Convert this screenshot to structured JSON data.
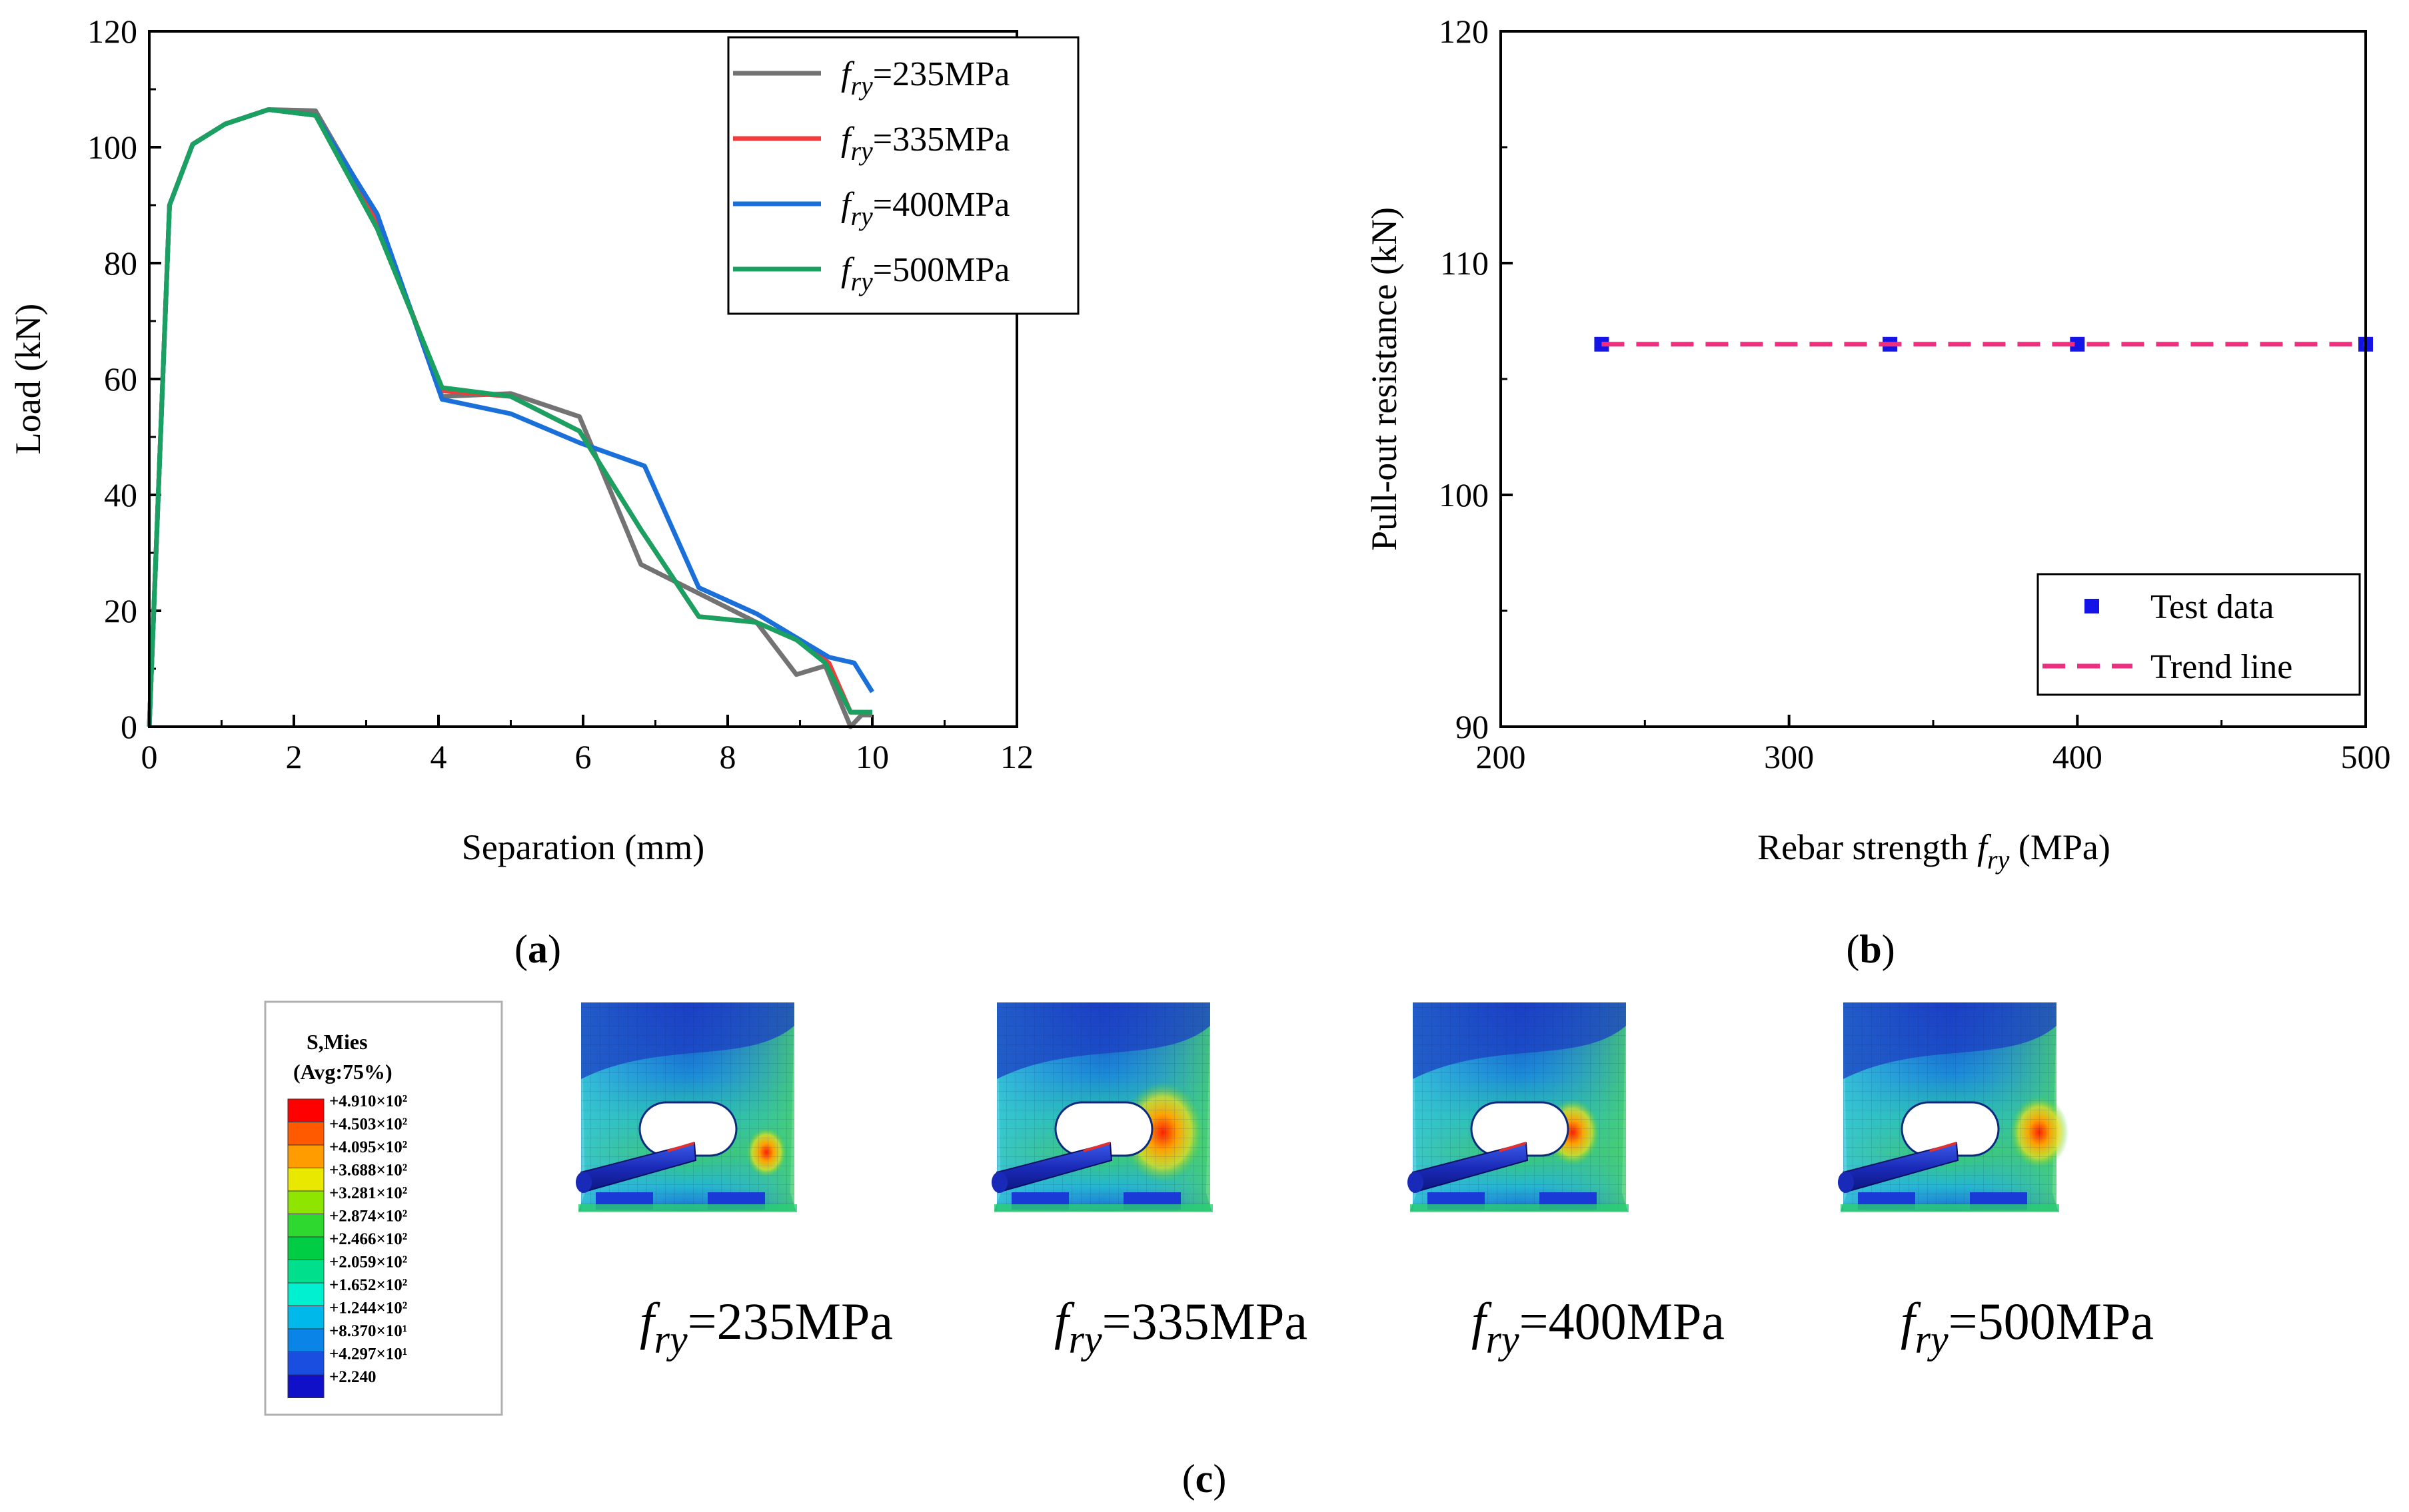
{
  "panel_labels": {
    "a": "a",
    "b": "b",
    "c": "c"
  },
  "chart_data": [
    {
      "id": "a",
      "type": "line",
      "xlabel": "Separation (mm)",
      "ylabel": "Load (kN)",
      "xlim": [
        0,
        12
      ],
      "ylim": [
        0,
        120
      ],
      "xticks": [
        0,
        2,
        4,
        6,
        8,
        10,
        12
      ],
      "yticks": [
        0,
        20,
        40,
        60,
        80,
        100,
        120
      ],
      "legend_position": "top-right",
      "series": [
        {
          "name": "=235MPa",
          "sym": "f",
          "sub": "ry",
          "color": "#737373",
          "x": [
            0,
            0.28,
            0.6,
            1.05,
            1.65,
            2.3,
            3.15,
            4.05,
            5.0,
            5.95,
            6.8,
            7.6,
            8.4,
            8.95,
            9.35,
            9.7,
            9.85,
            10.0
          ],
          "y": [
            0,
            90,
            100.5,
            104,
            106.5,
            106.3,
            88,
            57,
            57.5,
            53.5,
            28,
            23,
            18,
            9,
            10.5,
            0,
            2,
            2
          ]
        },
        {
          "name": "=335MPa",
          "sym": "f",
          "sub": "ry",
          "color": "#f23b3b",
          "x": [
            0,
            0.28,
            0.6,
            1.05,
            1.65,
            2.3,
            3.15,
            4.05,
            5.0,
            5.95,
            6.8,
            7.6,
            8.4,
            8.95,
            9.4,
            9.7,
            10.0
          ],
          "y": [
            0,
            90,
            100.5,
            104,
            106.5,
            105.5,
            87,
            58,
            57,
            51,
            34,
            19,
            18,
            15,
            11,
            2.5,
            2.5
          ]
        },
        {
          "name": "=400MPa",
          "sym": "f",
          "sub": "ry",
          "color": "#1a6fd8",
          "x": [
            0,
            0.28,
            0.6,
            1.05,
            1.65,
            2.3,
            3.15,
            4.05,
            5.0,
            5.95,
            6.85,
            7.6,
            8.4,
            9.0,
            9.4,
            9.75,
            10.0
          ],
          "y": [
            0,
            90,
            100.5,
            104,
            106.5,
            105.5,
            88.5,
            56.5,
            54,
            49,
            45,
            24,
            19.5,
            15,
            12,
            11,
            6
          ]
        },
        {
          "name": "=500MPa",
          "sym": "f",
          "sub": "ry",
          "color": "#1aa060",
          "x": [
            0,
            0.28,
            0.6,
            1.05,
            1.65,
            2.3,
            3.15,
            4.05,
            5.0,
            5.95,
            6.8,
            7.6,
            8.4,
            8.95,
            9.35,
            9.7,
            10.0
          ],
          "y": [
            0,
            90,
            100.5,
            104,
            106.5,
            105.5,
            86,
            58.5,
            57,
            51,
            34,
            19,
            18,
            15,
            11,
            2.5,
            2.5
          ]
        }
      ]
    },
    {
      "id": "b",
      "type": "scatter",
      "xlabel": "Rebar strength",
      "xlabel_sym": "f",
      "xlabel_sub": "ry",
      "xlabel_unit": " (MPa)",
      "ylabel": "Pull-out resistance (kN)",
      "xlim": [
        200,
        500
      ],
      "ylim": [
        90,
        120
      ],
      "xticks": [
        200,
        300,
        400,
        500
      ],
      "yticks": [
        90,
        100,
        110,
        120
      ],
      "legend_position": "bottom-right",
      "series": [
        {
          "name": "Test data",
          "kind": "points",
          "color": "#1414e6",
          "x": [
            235,
            335,
            400,
            500
          ],
          "y": [
            106.5,
            106.5,
            106.5,
            106.5
          ]
        },
        {
          "name": "Trend line",
          "kind": "dashed-line",
          "color": "#ee2f80",
          "x": [
            235,
            500
          ],
          "y": [
            106.5,
            106.5
          ]
        }
      ]
    }
  ],
  "contour": {
    "title_line1": "S,Mies",
    "title_line2": "(Avg:75%)",
    "legend_values": [
      "+4.910×10²",
      "+4.503×10²",
      "+4.095×10²",
      "+3.688×10²",
      "+3.281×10²",
      "+2.874×10²",
      "+2.466×10²",
      "+2.059×10²",
      "+1.652×10²",
      "+1.244×10²",
      "+8.370×10¹",
      "+4.297×10¹",
      "+2.240"
    ],
    "legend_colors": [
      "#ff0000",
      "#ff5a00",
      "#ff9c00",
      "#e8e800",
      "#8ee600",
      "#2ed82e",
      "#00cc44",
      "#00e08c",
      "#00f0d0",
      "#00b8ea",
      "#0a84e6",
      "#1a4ee0",
      "#1010c8"
    ],
    "models": [
      {
        "sym": "f",
        "sub": "ry",
        "label": "=235MPa"
      },
      {
        "sym": "f",
        "sub": "ry",
        "label": "=335MPa"
      },
      {
        "sym": "f",
        "sub": "ry",
        "label": "=400MPa"
      },
      {
        "sym": "f",
        "sub": "ry",
        "label": "=500MPa"
      }
    ]
  }
}
